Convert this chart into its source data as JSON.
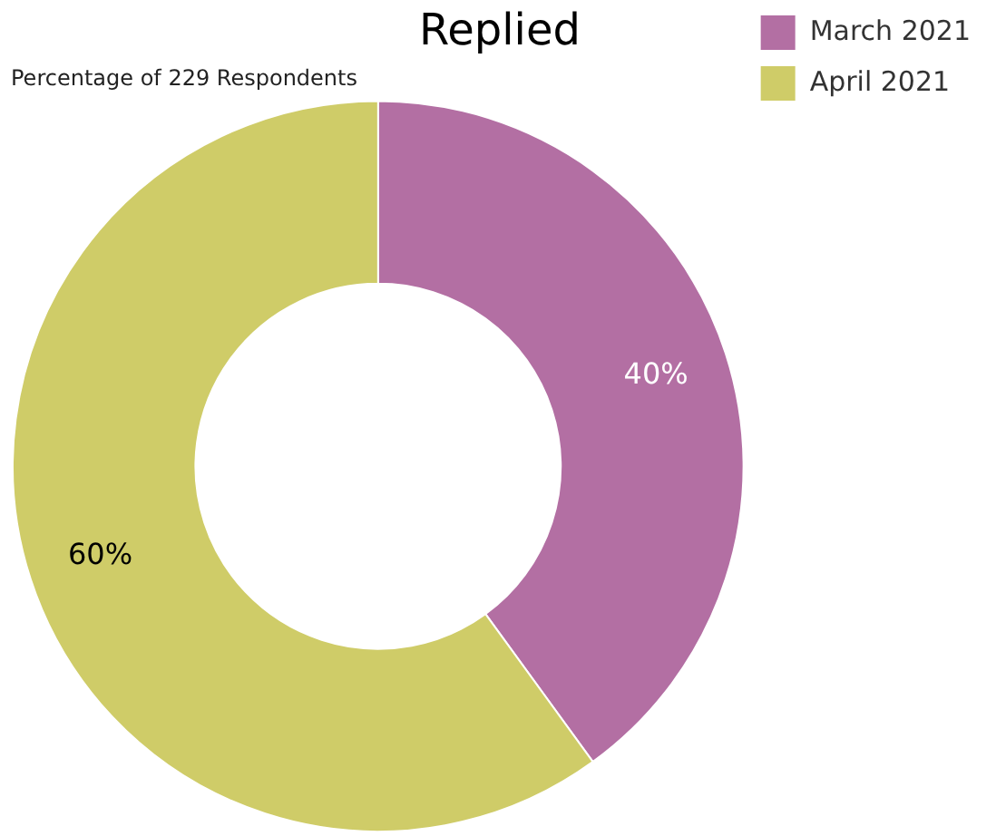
{
  "chart_data": {
    "type": "donut",
    "title": "Replied",
    "subtitle": "Percentage of 229 Respondents",
    "categories": [
      "March 2021",
      "April 2021"
    ],
    "values": [
      40,
      60
    ],
    "colors": [
      "#b36fa3",
      "#cfcc68"
    ],
    "value_labels": [
      "40%",
      "60%"
    ],
    "legend": "top right"
  }
}
